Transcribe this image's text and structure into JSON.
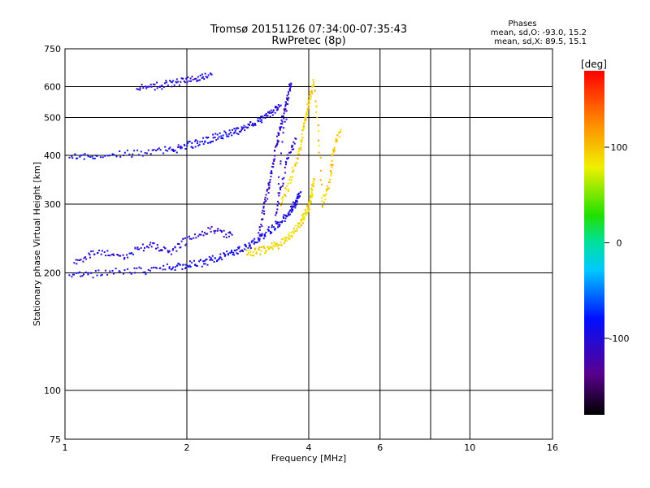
{
  "chart_data": {
    "type": "scatter",
    "title": "Tromsø 20151126 07:34:00-07:35:43",
    "subtitle": "RwPretec (8p)",
    "xlabel": "Frequency [MHz]",
    "ylabel": "Stationary phase Virtual Height [km]",
    "x_scale": "log",
    "y_scale": "log",
    "xlim": [
      1,
      16
    ],
    "ylim": [
      75,
      750
    ],
    "x_ticks": [
      1,
      2,
      4,
      6,
      8,
      10,
      16
    ],
    "x_tick_labels": [
      "1",
      "2",
      "4",
      "6",
      "",
      "10",
      "16"
    ],
    "y_ticks": [
      75,
      100,
      200,
      300,
      400,
      500,
      600,
      750
    ],
    "y_tick_labels": [
      "75",
      "100",
      "200",
      "300",
      "400",
      "500",
      "600",
      "750"
    ],
    "grid": true,
    "stats": {
      "title": "Phases",
      "line_o": "mean, sd,O: -93.0, 15.2",
      "line_x": "mean, sd,X:  89.5, 15.1"
    },
    "colorbar": {
      "label": "[deg]",
      "range": [
        -180,
        180
      ],
      "tick_values": [
        100,
        0,
        -100
      ],
      "tick_labels": [
        "100",
        "0",
        "-100"
      ]
    },
    "traces": [
      {
        "desc": "O-mode F2 trace",
        "phase": -95,
        "points": [
          [
            1.02,
            198
          ],
          [
            1.2,
            200
          ],
          [
            1.5,
            203
          ],
          [
            1.8,
            207
          ],
          [
            2.0,
            210
          ],
          [
            2.2,
            214
          ],
          [
            2.4,
            220
          ],
          [
            2.6,
            227
          ],
          [
            2.8,
            235
          ],
          [
            3.0,
            245
          ],
          [
            3.2,
            258
          ],
          [
            3.4,
            272
          ],
          [
            3.6,
            290
          ],
          [
            3.7,
            305
          ],
          [
            3.8,
            320
          ]
        ]
      },
      {
        "desc": "X-mode F2 trace",
        "phase": 90,
        "points": [
          [
            2.8,
            225
          ],
          [
            3.0,
            228
          ],
          [
            3.2,
            232
          ],
          [
            3.4,
            240
          ],
          [
            3.6,
            252
          ],
          [
            3.8,
            268
          ],
          [
            3.9,
            285
          ],
          [
            4.0,
            300
          ],
          [
            4.05,
            320
          ],
          [
            4.1,
            350
          ]
        ]
      },
      {
        "desc": "O-mode second hop",
        "phase": -95,
        "points": [
          [
            1.02,
            400
          ],
          [
            1.2,
            402
          ],
          [
            1.5,
            407
          ],
          [
            1.8,
            415
          ],
          [
            2.0,
            425
          ],
          [
            2.2,
            437
          ],
          [
            2.4,
            450
          ],
          [
            2.6,
            462
          ],
          [
            2.8,
            478
          ],
          [
            3.0,
            495
          ],
          [
            3.2,
            515
          ],
          [
            3.4,
            540
          ]
        ]
      },
      {
        "desc": "O-mode third hop",
        "phase": -100,
        "points": [
          [
            1.5,
            600
          ],
          [
            1.7,
            608
          ],
          [
            1.9,
            620
          ],
          [
            2.1,
            632
          ],
          [
            2.3,
            645
          ]
        ]
      },
      {
        "desc": "O-mode spread F cloud",
        "phase": -110,
        "points": [
          [
            3.0,
            250
          ],
          [
            3.1,
            300
          ],
          [
            3.2,
            350
          ],
          [
            3.3,
            420
          ],
          [
            3.4,
            480
          ],
          [
            3.5,
            550
          ],
          [
            3.6,
            620
          ],
          [
            3.3,
            280
          ],
          [
            3.5,
            380
          ],
          [
            3.7,
            450
          ]
        ]
      },
      {
        "desc": "X-mode spread F cloud",
        "phase": 95,
        "points": [
          [
            3.4,
            300
          ],
          [
            3.6,
            350
          ],
          [
            3.8,
            420
          ],
          [
            3.9,
            500
          ],
          [
            4.0,
            560
          ],
          [
            4.1,
            620
          ],
          [
            4.3,
            300
          ],
          [
            4.5,
            350
          ],
          [
            4.6,
            420
          ],
          [
            4.8,
            470
          ]
        ]
      },
      {
        "desc": "O-mode low spread",
        "phase": -105,
        "points": [
          [
            1.05,
            215
          ],
          [
            1.2,
            228
          ],
          [
            1.4,
            222
          ],
          [
            1.6,
            238
          ],
          [
            1.8,
            225
          ],
          [
            2.0,
            245
          ],
          [
            2.3,
            260
          ],
          [
            2.6,
            250
          ]
        ]
      }
    ]
  }
}
